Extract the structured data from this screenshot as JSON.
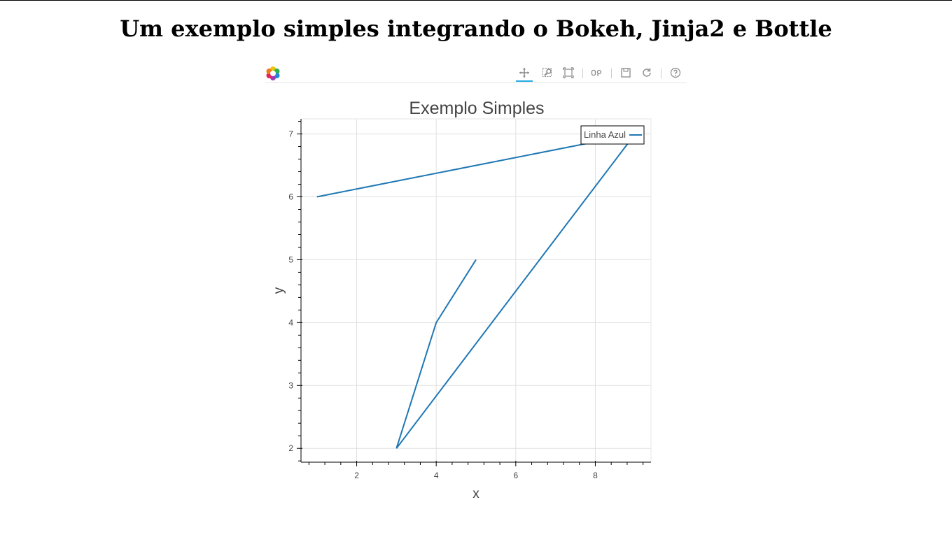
{
  "page": {
    "heading": "Um exemplo simples integrando o Bokeh, Jinja2 e Bottle"
  },
  "toolbar": {
    "logo_icon": "bokeh-logo-icon",
    "tools": [
      {
        "icon": "pan-icon",
        "active": true
      },
      {
        "icon": "box-zoom-icon",
        "active": false
      },
      {
        "icon": "box-select-icon",
        "active": false
      },
      {
        "icon": "resize-icon",
        "active": false
      },
      {
        "icon": "save-icon",
        "active": false
      },
      {
        "icon": "reset-icon",
        "active": false
      },
      {
        "icon": "help-icon",
        "active": false
      }
    ],
    "active_color": "#26aae1"
  },
  "chart_data": {
    "type": "line",
    "title": "Exemplo Simples",
    "xlabel": "x",
    "ylabel": "y",
    "xlim": [
      0.6,
      9.4
    ],
    "ylim": [
      1.78,
      7.24
    ],
    "x_ticks": [
      2,
      4,
      6,
      8
    ],
    "y_ticks": [
      2,
      3,
      4,
      5,
      6,
      7
    ],
    "grid": true,
    "legend_position": "top-right",
    "series": [
      {
        "name": "Linha Azul",
        "color": "#1f77b4",
        "x": [
          1,
          9,
          3,
          4,
          5
        ],
        "y": [
          6,
          7,
          2,
          4,
          5
        ]
      }
    ]
  }
}
